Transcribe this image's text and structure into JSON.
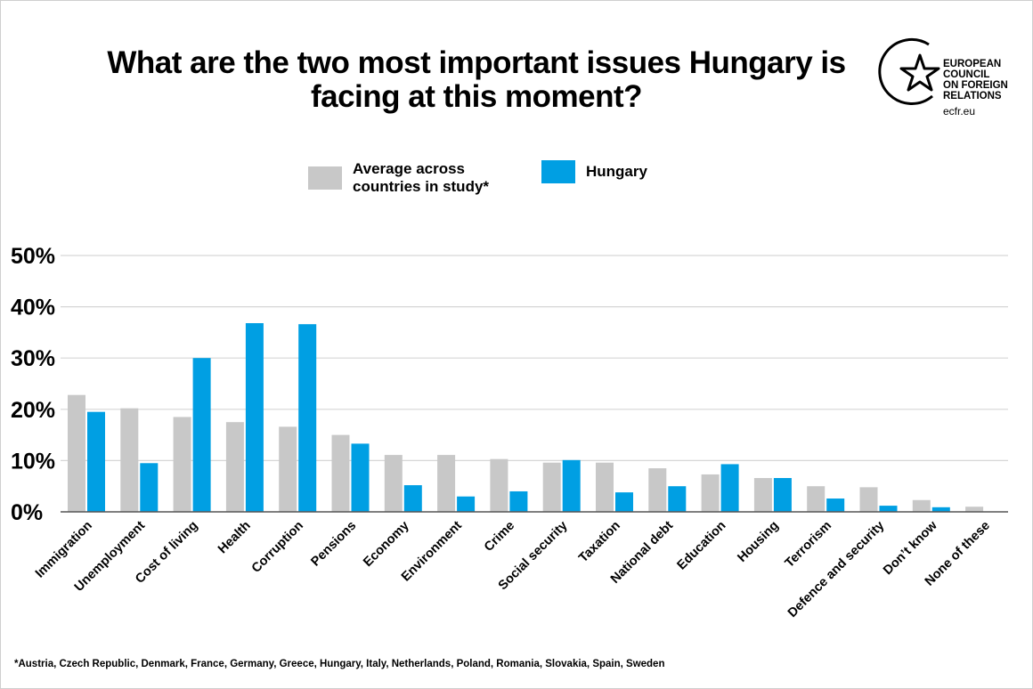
{
  "title_line1": "What are the two most important issues Hungary is",
  "title_line2": "facing at this moment?",
  "logo": {
    "line1": "EUROPEAN",
    "line2": "COUNCIL",
    "line3": "ON FOREIGN",
    "line4": "RELATIONS",
    "url": "ecfr.eu",
    "icon": "star-in-circle-icon"
  },
  "legend": {
    "average_line1": "Average across",
    "average_line2": "countries in study*",
    "hungary": "Hungary"
  },
  "footnote": "*Austria, Czech Republic, Denmark, France, Germany, Greece, Hungary, Italy, Netherlands, Poland, Romania, Slovakia, Spain, Sweden",
  "colors": {
    "average": "#c8c8c8",
    "hungary": "#009fe3",
    "grid": "#d6d6d6",
    "axis": "#555555"
  },
  "chart_data": {
    "type": "bar",
    "title": "What are the two most important issues Hungary is facing at this moment?",
    "categories": [
      "Immigration",
      "Unemployment",
      "Cost of living",
      "Health",
      "Corruption",
      "Pensions",
      "Economy",
      "Environment",
      "Crime",
      "Social security",
      "Taxation",
      "National debt",
      "Education",
      "Housing",
      "Terrorism",
      "Defence and security",
      "Don’t know",
      "None of these"
    ],
    "series": [
      {
        "name": "Average across countries in study*",
        "values": [
          22.8,
          20.2,
          18.5,
          17.5,
          16.6,
          15.0,
          11.1,
          11.1,
          10.3,
          9.6,
          9.6,
          8.5,
          7.3,
          6.6,
          5.0,
          4.8,
          2.3,
          1.0
        ]
      },
      {
        "name": "Hungary",
        "values": [
          19.5,
          9.5,
          30.0,
          36.8,
          36.6,
          13.3,
          5.2,
          3.0,
          4.0,
          10.1,
          3.8,
          5.0,
          9.3,
          6.6,
          2.6,
          1.2,
          0.9,
          null
        ]
      }
    ],
    "yticks": [
      "0%",
      "10%",
      "20%",
      "30%",
      "40%",
      "50%"
    ],
    "ylim": [
      0,
      50
    ],
    "grid": true,
    "legend_position": "top"
  }
}
